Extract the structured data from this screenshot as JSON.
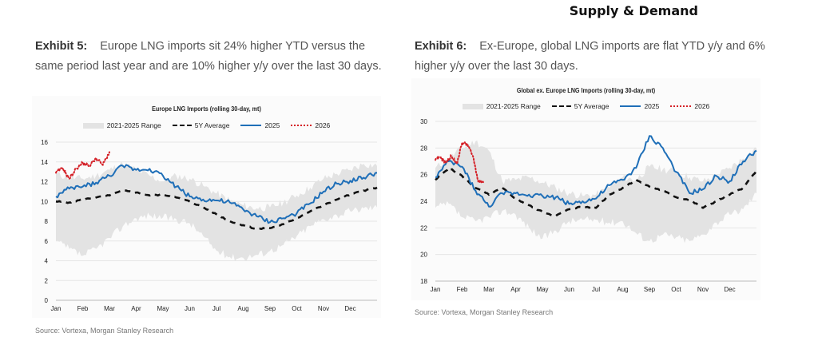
{
  "header": {
    "title": "Supply & Demand"
  },
  "exhibits": [
    {
      "label": "Exhibit 5:",
      "caption": "Europe LNG imports sit 24% higher YTD versus the same period last year and are 10% higher y/y over the last 30 days.",
      "source": "Source: Vortexa, Morgan Stanley Research"
    },
    {
      "label": "Exhibit 6:",
      "caption": "Ex-Europe, global LNG imports are flat YTD y/y and 6% higher y/y over the last 30 days.",
      "source": "Source: Vortexa, Morgan Stanley Research"
    }
  ],
  "legend": {
    "range": "2021-2025 Range",
    "avg": "5Y Average",
    "y2025": "2025",
    "y2026": "2026"
  },
  "colors": {
    "range": "#e3e3e3",
    "avg": "#111111",
    "y2025": "#1f6fb8",
    "y2026": "#d42027",
    "grid": "#e6e6e6"
  },
  "chart_data": [
    {
      "type": "area",
      "title": "Europe LNG Imports (rolling 30-day, mt)",
      "xlabel": "",
      "ylabel": "",
      "x_ticks": [
        "Jan",
        "Feb",
        "Mar",
        "Apr",
        "May",
        "Jun",
        "Jul",
        "Aug",
        "Sep",
        "Oct",
        "Nov",
        "Dec"
      ],
      "y_ticks": [
        0,
        2,
        4,
        6,
        8,
        10,
        12,
        14,
        16
      ],
      "ylim": [
        0,
        16
      ],
      "grid": true,
      "legend_position": "top-center",
      "x_months": [
        0,
        0.5,
        1,
        1.5,
        2,
        2.5,
        3,
        3.5,
        4,
        4.5,
        5,
        5.5,
        6,
        6.5,
        7,
        7.5,
        8,
        8.5,
        9,
        9.5,
        10,
        10.5,
        11,
        11.5,
        12
      ],
      "series": [
        {
          "name": "2021-2025 Range",
          "kind": "band",
          "low": [
            6.0,
            5.2,
            4.5,
            5.2,
            6.3,
            7.5,
            8.3,
            8.6,
            8.4,
            8.2,
            7.8,
            6.5,
            5.0,
            4.4,
            4.3,
            4.6,
            5.0,
            5.6,
            6.5,
            7.5,
            8.2,
            8.6,
            9.0,
            9.3,
            9.4
          ],
          "high": [
            12.8,
            12.4,
            12.3,
            12.6,
            13.2,
            13.8,
            13.2,
            12.6,
            12.0,
            12.6,
            12.3,
            11.6,
            10.8,
            10.1,
            9.6,
            9.3,
            9.4,
            9.9,
            10.6,
            11.4,
            12.3,
            12.8,
            13.2,
            13.8,
            13.6
          ]
        },
        {
          "name": "5Y Average",
          "kind": "dashed",
          "values": [
            10.0,
            9.9,
            10.2,
            10.4,
            10.6,
            11.1,
            10.9,
            10.6,
            10.7,
            10.4,
            10.0,
            9.4,
            8.7,
            8.0,
            7.6,
            7.2,
            7.3,
            7.7,
            8.3,
            9.0,
            9.6,
            10.2,
            10.7,
            11.1,
            11.4
          ]
        },
        {
          "name": "2025",
          "kind": "solid",
          "values": [
            10.5,
            11.3,
            11.5,
            11.9,
            12.6,
            13.6,
            13.2,
            13.3,
            12.6,
            11.5,
            10.5,
            10.2,
            10.1,
            9.9,
            9.2,
            8.5,
            7.9,
            8.3,
            8.8,
            9.8,
            11.0,
            11.8,
            12.1,
            12.4,
            12.9
          ]
        },
        {
          "name": "2026",
          "kind": "dotted",
          "x_months": [
            0,
            0.25,
            0.5,
            0.75,
            1,
            1.25,
            1.5,
            1.75,
            2
          ],
          "values": [
            12.9,
            13.4,
            12.3,
            13.3,
            13.9,
            13.6,
            14.4,
            13.7,
            15.0
          ]
        }
      ]
    },
    {
      "type": "area",
      "title": "Global ex. Europe LNG Imports (rolling 30-day, mt)",
      "xlabel": "",
      "ylabel": "",
      "x_ticks": [
        "Jan",
        "Feb",
        "Mar",
        "Apr",
        "May",
        "Jun",
        "Jul",
        "Aug",
        "Sep",
        "Oct",
        "Nov",
        "Dec"
      ],
      "y_ticks": [
        18,
        20,
        22,
        24,
        26,
        28,
        30
      ],
      "ylim": [
        18,
        30
      ],
      "grid": true,
      "legend_position": "top-center",
      "x_months": [
        0,
        0.5,
        1,
        1.5,
        2,
        2.5,
        3,
        3.5,
        4,
        4.5,
        5,
        5.5,
        6,
        6.5,
        7,
        7.5,
        8,
        8.5,
        9,
        9.5,
        10,
        10.5,
        11,
        11.5,
        12
      ],
      "series": [
        {
          "name": "2021-2025 Range",
          "kind": "band",
          "low": [
            23.5,
            23.8,
            22.8,
            22.5,
            22.8,
            23.3,
            23.0,
            22.0,
            21.2,
            21.8,
            22.5,
            22.6,
            22.6,
            22.4,
            22.5,
            21.6,
            21.0,
            21.5,
            21.3,
            21.0,
            21.5,
            22.4,
            23.0,
            23.4,
            24.6
          ],
          "high": [
            26.5,
            27.2,
            28.0,
            28.5,
            27.8,
            25.5,
            25.6,
            25.8,
            25.4,
            25.0,
            24.6,
            24.4,
            24.5,
            25.0,
            25.8,
            25.6,
            26.6,
            26.4,
            26.2,
            25.8,
            25.5,
            25.9,
            26.5,
            27.2,
            28.0
          ]
        },
        {
          "name": "5Y Average",
          "kind": "dashed",
          "values": [
            25.6,
            26.5,
            25.9,
            25.0,
            24.5,
            25.0,
            24.2,
            23.7,
            23.2,
            22.9,
            23.4,
            23.6,
            23.5,
            24.5,
            25.0,
            25.6,
            25.1,
            24.8,
            24.3,
            24.1,
            23.5,
            24.0,
            24.5,
            25.0,
            26.3
          ]
        },
        {
          "name": "2025",
          "kind": "solid",
          "values": [
            25.8,
            27.0,
            26.6,
            24.8,
            23.6,
            24.6,
            24.6,
            24.5,
            24.4,
            24.3,
            23.8,
            24.0,
            24.2,
            25.2,
            25.6,
            26.5,
            28.9,
            28.0,
            26.2,
            24.6,
            24.9,
            25.9,
            25.5,
            27.0,
            27.8
          ]
        },
        {
          "name": "2026",
          "kind": "dotted",
          "x_months": [
            0,
            0.2,
            0.4,
            0.6,
            0.8,
            1,
            1.2,
            1.4,
            1.6,
            1.8
          ],
          "values": [
            27.1,
            27.3,
            26.9,
            27.4,
            26.8,
            28.4,
            28.3,
            27.4,
            25.5,
            25.4
          ]
        }
      ]
    }
  ]
}
